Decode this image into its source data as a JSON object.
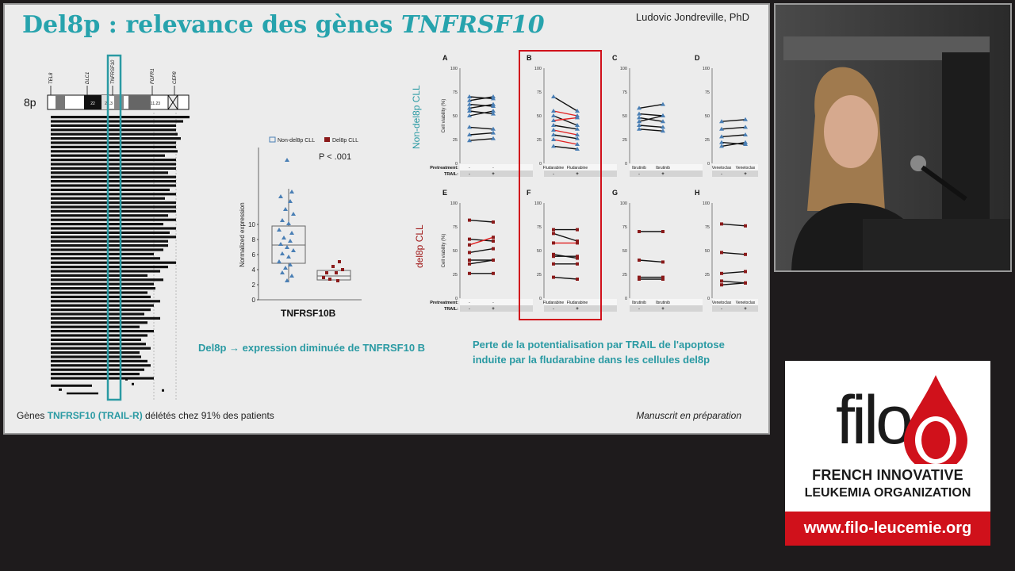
{
  "slide": {
    "title_prefix": "Del8p : relevance des gènes ",
    "title_gene": "TNFRSF10",
    "author": "Ludovic Jondreville, PhD",
    "chromosome": {
      "arm_label": "8p",
      "genes": [
        "TEL8",
        "DLC1",
        "TNFRSF10",
        "FGFR1",
        "CEP8"
      ],
      "bands": [
        "22",
        "21.3",
        "11.23"
      ]
    },
    "boxplot": {
      "legend": [
        "Non-del8p CLL",
        "Del8p CLL"
      ],
      "p_value": "P < .001",
      "ylabel": "Normalized expression",
      "xlabel": "TNFRSF10B",
      "yticks": [
        "0",
        "2",
        "4",
        "6",
        "8",
        "10"
      ]
    },
    "panels": {
      "row_labels": [
        "Non-del8p CLL",
        "del8p CLL"
      ],
      "letters": [
        "A",
        "B",
        "C",
        "D",
        "E",
        "F",
        "G",
        "H"
      ],
      "ylabel": "Cell viability (%)",
      "yticks": [
        "0",
        "25",
        "50",
        "75",
        "100"
      ],
      "row_pretreatment_label": "Pretreatment:",
      "row_trail_label": "TRAIL:",
      "drugs": [
        "",
        "Fludarabine",
        "Ibrutinib",
        "Venetoclax"
      ],
      "minus": "-",
      "plus": "+"
    },
    "caption_mid": "Del8p → expression diminuée de TNFRSF10 B",
    "caption_right": "Perte de la potentialisation par TRAIL de l'apoptose induite par la fludarabine dans les cellules del8p",
    "bottom_prefix": "Gènes ",
    "bottom_gene": "TNFRSF10 (TRAIL-R)",
    "bottom_suffix": " délétés chez 91% des patients",
    "manuscript": "Manuscrit en préparation"
  },
  "logo": {
    "name": "filo",
    "tagline1": "FRENCH INNOVATIVE",
    "tagline2": "LEUKEMIA ORGANIZATION",
    "url": "www.filo-leucemie.org"
  },
  "colors": {
    "teal": "#2a9aa3",
    "red": "#d0111b",
    "blue_marker": "#4a7fb5",
    "dark_red_marker": "#8b1a1a"
  }
}
